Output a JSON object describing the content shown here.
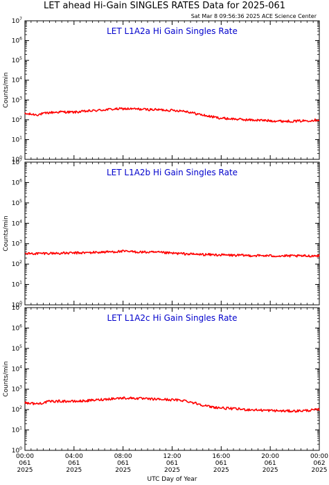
{
  "header": {
    "title": "LET ahead Hi-Gain SINGLES RATES Data for 2025-061",
    "timestamp": "Sat Mar  8 09:56:36 2025 ACE Science Center"
  },
  "chart_data": {
    "type": "line",
    "xlabel": "UTC Day of Year",
    "ylabel": "Counts/min",
    "y_scale": "log",
    "ylim": [
      1,
      10000000
    ],
    "y_ticks": [
      {
        "base": "10",
        "exp": "0"
      },
      {
        "base": "10",
        "exp": "1"
      },
      {
        "base": "10",
        "exp": "2"
      },
      {
        "base": "10",
        "exp": "3"
      },
      {
        "base": "10",
        "exp": "4"
      },
      {
        "base": "10",
        "exp": "5"
      },
      {
        "base": "10",
        "exp": "6"
      },
      {
        "base": "10",
        "exp": "7"
      }
    ],
    "xlim_hours": [
      0,
      24
    ],
    "x_ticks": [
      {
        "hour": 0,
        "time": "00:00",
        "doy": "061",
        "year": "2025"
      },
      {
        "hour": 4,
        "time": "04:00",
        "doy": "061",
        "year": "2025"
      },
      {
        "hour": 8,
        "time": "08:00",
        "doy": "061",
        "year": "2025"
      },
      {
        "hour": 12,
        "time": "12:00",
        "doy": "061",
        "year": "2025"
      },
      {
        "hour": 16,
        "time": "16:00",
        "doy": "061",
        "year": "2025"
      },
      {
        "hour": 20,
        "time": "20:00",
        "doy": "061",
        "year": "2025"
      },
      {
        "hour": 24,
        "time": "00:00",
        "doy": "062",
        "year": "2025"
      }
    ],
    "line_color": "#ff0000",
    "grid": false,
    "panels": [
      {
        "title": "LET L1A2a Hi Gain Singles Rate",
        "x_hours": [
          0,
          1,
          2,
          3,
          4,
          5,
          6,
          7,
          8,
          9,
          10,
          11,
          12,
          13,
          14,
          15,
          16,
          17,
          18,
          19,
          20,
          21,
          22,
          23,
          24
        ],
        "values": [
          200,
          180,
          230,
          250,
          240,
          270,
          300,
          340,
          360,
          350,
          330,
          320,
          300,
          280,
          200,
          150,
          120,
          110,
          100,
          95,
          90,
          85,
          85,
          90,
          100
        ]
      },
      {
        "title": "LET L1A2b Hi Gain Singles Rate",
        "x_hours": [
          0,
          1,
          2,
          3,
          4,
          5,
          6,
          7,
          8,
          9,
          10,
          11,
          12,
          13,
          14,
          15,
          16,
          17,
          18,
          19,
          20,
          21,
          22,
          23,
          24
        ],
        "values": [
          320,
          330,
          340,
          340,
          350,
          360,
          380,
          400,
          420,
          400,
          380,
          370,
          340,
          320,
          300,
          290,
          280,
          270,
          265,
          260,
          255,
          250,
          250,
          250,
          260
        ]
      },
      {
        "title": "LET L1A2c Hi Gain Singles Rate",
        "x_hours": [
          0,
          1,
          2,
          3,
          4,
          5,
          6,
          7,
          8,
          9,
          10,
          11,
          12,
          13,
          14,
          15,
          16,
          17,
          18,
          19,
          20,
          21,
          22,
          23,
          24
        ],
        "values": [
          220,
          190,
          250,
          260,
          250,
          270,
          300,
          340,
          370,
          360,
          330,
          320,
          300,
          280,
          200,
          140,
          120,
          110,
          100,
          95,
          90,
          85,
          85,
          90,
          100
        ]
      }
    ]
  }
}
